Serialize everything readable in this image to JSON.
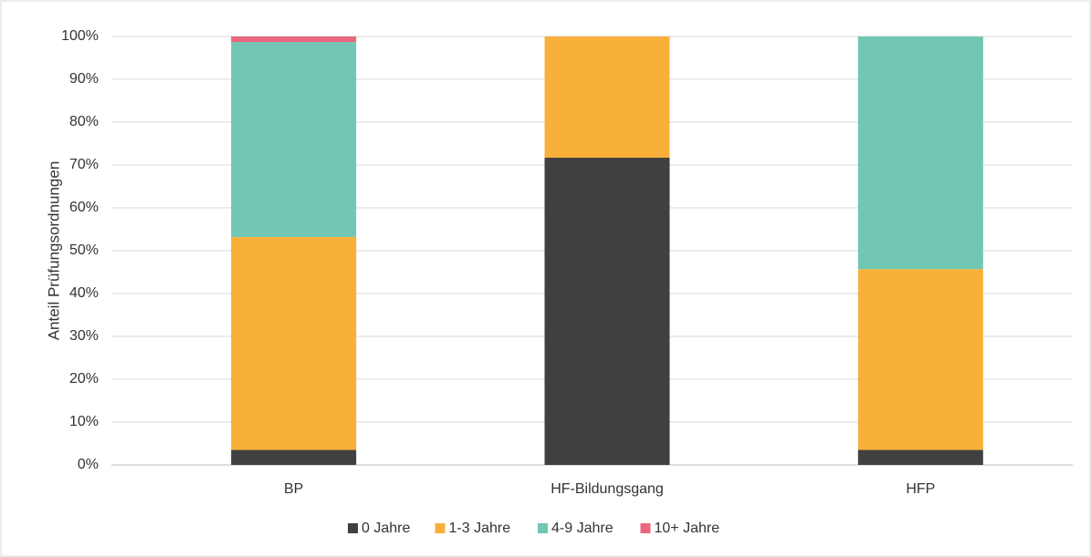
{
  "chart_data": {
    "type": "stacked_bar",
    "y_axis_label": "Anteil Prüfungsordnungen",
    "categories": [
      "BP",
      "HF-Bildungsgang",
      "HFP"
    ],
    "series": [
      {
        "name": "0 Jahre",
        "color": "#404040",
        "values": [
          3.5,
          71.7,
          3.5
        ]
      },
      {
        "name": "1-3 Jahre",
        "color": "#f9b03b",
        "values": [
          49.7,
          28.3,
          42.2
        ]
      },
      {
        "name": "4-9 Jahre",
        "color": "#71c7b4",
        "values": [
          45.5,
          0,
          54.3
        ]
      },
      {
        "name": "10+ Jahre",
        "color": "#e9677f",
        "values": [
          1.3,
          0,
          0
        ]
      }
    ],
    "ylim": [
      0,
      100
    ],
    "yticks": [
      {
        "value": 0,
        "label": "0%"
      },
      {
        "value": 10,
        "label": "10%"
      },
      {
        "value": 20,
        "label": "20%"
      },
      {
        "value": 30,
        "label": "30%"
      },
      {
        "value": 40,
        "label": "40%"
      },
      {
        "value": 50,
        "label": "50%"
      },
      {
        "value": 60,
        "label": "60%"
      },
      {
        "value": 70,
        "label": "70%"
      },
      {
        "value": 80,
        "label": "80%"
      },
      {
        "value": 90,
        "label": "90%"
      },
      {
        "value": 100,
        "label": "100%"
      }
    ],
    "grid": true,
    "legend": "bottom"
  }
}
